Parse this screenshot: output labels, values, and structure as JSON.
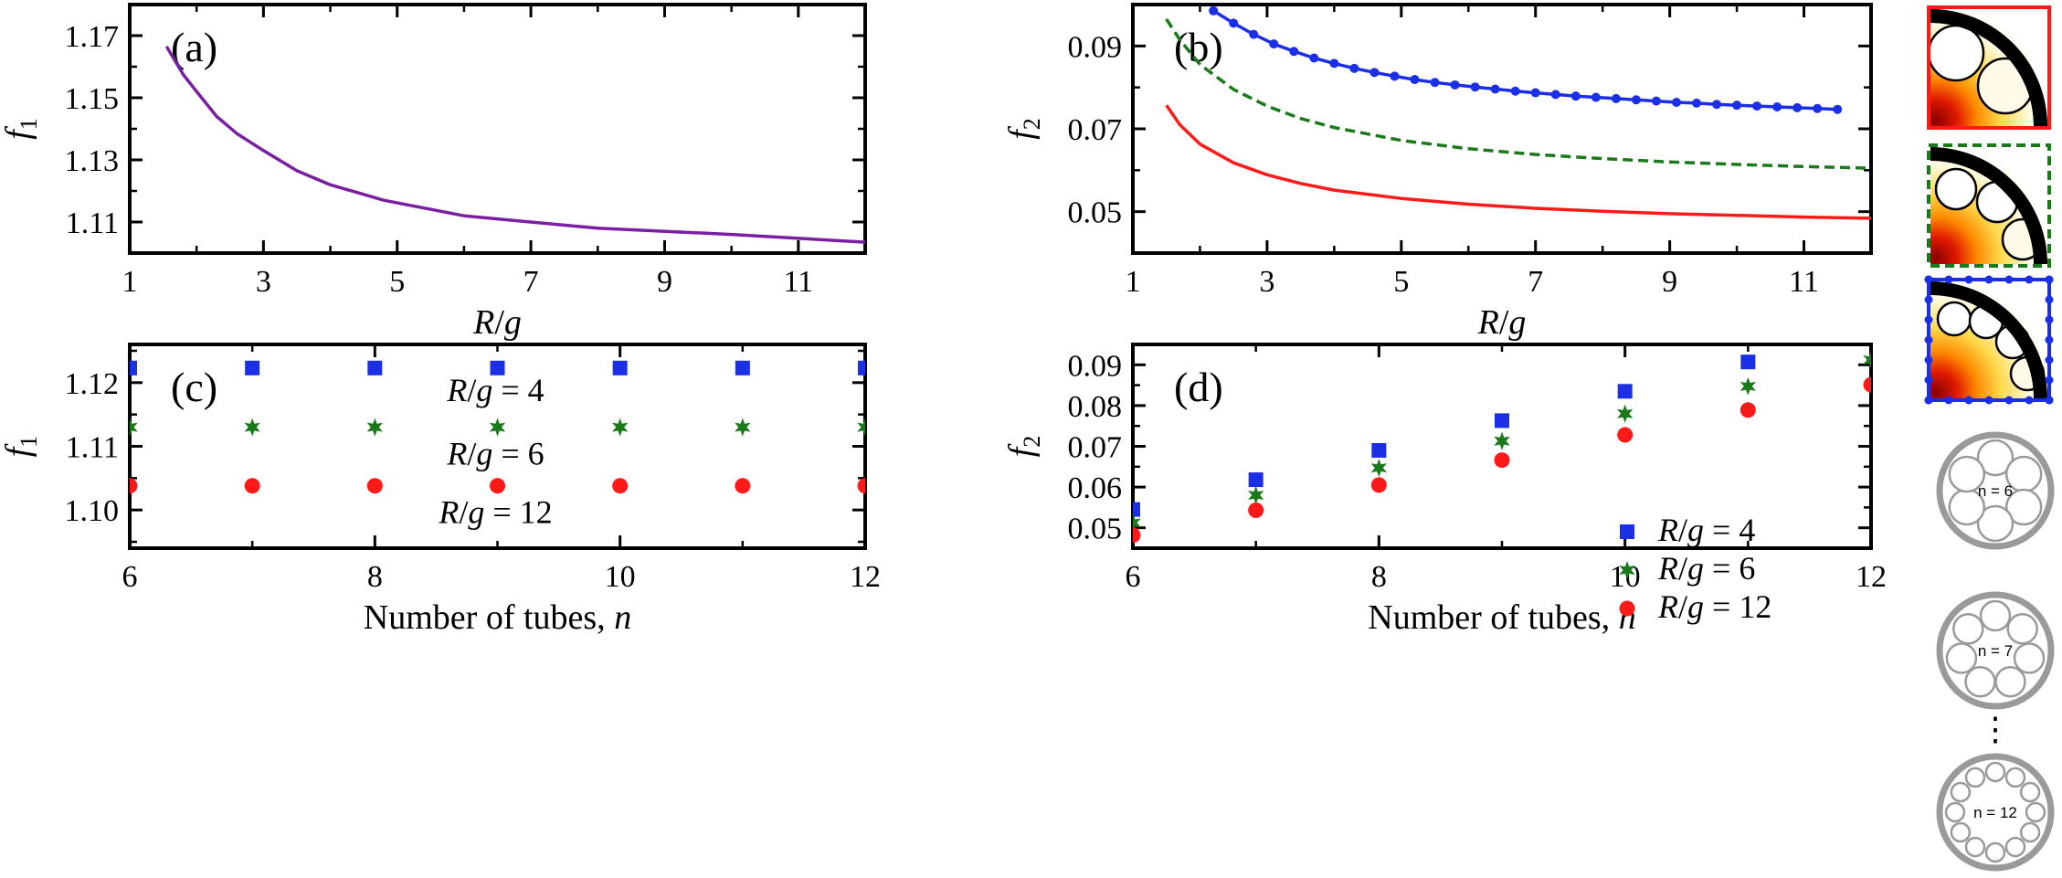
{
  "colors": {
    "purple": "#7a1fa2",
    "red": "#ff1a1a",
    "green": "#1a7a1a",
    "blue": "#1a2fe6",
    "grey": "#9a9a9a"
  },
  "chart_data": [
    {
      "id": "a",
      "type": "line",
      "panel_label": "(a)",
      "xlabel_var": "R",
      "xlabel_sep": "/",
      "xlabel_var2": "g",
      "ylabel": "f",
      "ylabel_sub": "1",
      "xlim": [
        1,
        12
      ],
      "ylim": [
        1.1,
        1.18
      ],
      "xticks": [
        1,
        3,
        5,
        7,
        9,
        11
      ],
      "yticks": [
        1.11,
        1.13,
        1.15,
        1.17
      ],
      "xtick_labels": [
        "1",
        "3",
        "5",
        "7",
        "9",
        "11"
      ],
      "ytick_labels": [
        "1.11",
        "1.13",
        "1.15",
        "1.17"
      ],
      "series": [
        {
          "name": "f1",
          "color": "#7a1fa2",
          "style": "solid",
          "x": [
            1.55,
            1.8,
            2.0,
            2.3,
            2.6,
            3.0,
            3.5,
            4.0,
            4.8,
            6.0,
            8.0,
            10.0,
            12.0
          ],
          "y": [
            1.1665,
            1.1575,
            1.152,
            1.144,
            1.1385,
            1.133,
            1.1265,
            1.122,
            1.117,
            1.112,
            1.108,
            1.106,
            1.1035
          ]
        }
      ]
    },
    {
      "id": "b",
      "type": "line",
      "panel_label": "(b)",
      "xlabel_var": "R",
      "xlabel_sep": "/",
      "xlabel_var2": "g",
      "ylabel": "f",
      "ylabel_sub": "2",
      "xlim": [
        1,
        12
      ],
      "ylim": [
        0.04,
        0.1
      ],
      "xticks": [
        1,
        3,
        5,
        7,
        9,
        11
      ],
      "yticks": [
        0.05,
        0.07,
        0.09
      ],
      "xtick_labels": [
        "1",
        "3",
        "5",
        "7",
        "9",
        "11"
      ],
      "ytick_labels": [
        "0.05",
        "0.07",
        "0.09"
      ],
      "series": [
        {
          "name": "red",
          "color": "#ff1a1a",
          "style": "solid",
          "x": [
            1.5,
            1.7,
            2.0,
            2.5,
            3.0,
            3.5,
            4.0,
            5.0,
            6.0,
            7.0,
            8.0,
            9.0,
            10.0,
            11.0,
            12.0
          ],
          "y": [
            0.0757,
            0.071,
            0.0663,
            0.0618,
            0.0589,
            0.0568,
            0.0552,
            0.0532,
            0.0518,
            0.0508,
            0.0501,
            0.0495,
            0.0491,
            0.0487,
            0.0484
          ]
        },
        {
          "name": "green-dashed",
          "color": "#1a7a1a",
          "style": "dashed",
          "x": [
            1.5,
            1.7,
            2.0,
            2.5,
            3.0,
            3.5,
            4.0,
            5.0,
            6.0,
            7.0,
            8.0,
            9.0,
            10.0,
            11.0,
            12.0
          ],
          "y": [
            0.0965,
            0.0915,
            0.0855,
            0.0795,
            0.0755,
            0.0725,
            0.0703,
            0.0672,
            0.0652,
            0.0638,
            0.0628,
            0.062,
            0.0614,
            0.0609,
            0.0605
          ]
        },
        {
          "name": "blue-markers",
          "color": "#1a2fe6",
          "style": "solid-markers",
          "x": [
            2.2,
            2.5,
            2.8,
            3.1,
            3.4,
            3.7,
            4.0,
            4.3,
            4.6,
            4.9,
            5.2,
            5.5,
            5.8,
            6.1,
            6.4,
            6.7,
            7.0,
            7.3,
            7.6,
            7.9,
            8.2,
            8.5,
            8.8,
            9.1,
            9.4,
            9.7,
            10.0,
            10.3,
            10.6,
            10.9,
            11.2,
            11.5
          ],
          "y": [
            0.0985,
            0.0955,
            0.0928,
            0.0905,
            0.0887,
            0.0871,
            0.0858,
            0.0846,
            0.0836,
            0.0827,
            0.0819,
            0.0812,
            0.0806,
            0.0801,
            0.0796,
            0.0791,
            0.0787,
            0.0783,
            0.0779,
            0.0776,
            0.0773,
            0.077,
            0.0767,
            0.0764,
            0.0762,
            0.0759,
            0.0757,
            0.0755,
            0.0753,
            0.0751,
            0.0749,
            0.0747
          ]
        }
      ]
    },
    {
      "id": "c",
      "type": "scatter",
      "panel_label": "(c)",
      "xlabel_text": "Number of tubes, ",
      "xlabel_var": "n",
      "ylabel": "f",
      "ylabel_sub": "1",
      "xlim": [
        6,
        12
      ],
      "ylim": [
        1.094,
        1.126
      ],
      "xticks": [
        6,
        8,
        10,
        12
      ],
      "yticks": [
        1.1,
        1.11,
        1.12
      ],
      "xtick_labels": [
        "6",
        "8",
        "10",
        "12"
      ],
      "ytick_labels": [
        "1.10",
        "1.11",
        "1.12"
      ],
      "annotations": [
        {
          "var": "R",
          "sep": "/",
          "var2": "g",
          "rest": " = 4"
        },
        {
          "var": "R",
          "sep": "/",
          "var2": "g",
          "rest": " = 6"
        },
        {
          "var": "R",
          "sep": "/",
          "var2": "g",
          "rest": " = 12"
        }
      ],
      "series": [
        {
          "name": "R/g = 4",
          "color": "#1a2fe6",
          "marker": "square",
          "x": [
            6,
            7,
            8,
            9,
            10,
            11,
            12
          ],
          "y": [
            1.1223,
            1.1223,
            1.1223,
            1.1223,
            1.1223,
            1.1223,
            1.1223
          ]
        },
        {
          "name": "R/g = 6",
          "color": "#1a7a1a",
          "marker": "star",
          "x": [
            6,
            7,
            8,
            9,
            10,
            11,
            12
          ],
          "y": [
            1.113,
            1.113,
            1.113,
            1.113,
            1.113,
            1.113,
            1.113
          ]
        },
        {
          "name": "R/g = 12",
          "color": "#ff1a1a",
          "marker": "circle",
          "x": [
            6,
            7,
            8,
            9,
            10,
            11,
            12
          ],
          "y": [
            1.1038,
            1.1038,
            1.1038,
            1.1038,
            1.1038,
            1.1038,
            1.1038
          ]
        }
      ]
    },
    {
      "id": "d",
      "type": "scatter",
      "panel_label": "(d)",
      "xlabel_text": "Number of tubes, ",
      "xlabel_var": "n",
      "ylabel": "f",
      "ylabel_sub": "2",
      "xlim": [
        6,
        12
      ],
      "ylim": [
        0.045,
        0.095
      ],
      "xticks": [
        6,
        8,
        10,
        12
      ],
      "yticks": [
        0.05,
        0.06,
        0.07,
        0.08,
        0.09
      ],
      "xtick_labels": [
        "6",
        "8",
        "10",
        "12"
      ],
      "ytick_labels": [
        "0.05",
        "0.06",
        "0.07",
        "0.08",
        "0.09"
      ],
      "legend": [
        {
          "var": "R",
          "sep": "/",
          "var2": "g",
          "rest": " = 4"
        },
        {
          "var": "R",
          "sep": "/",
          "var2": "g",
          "rest": " = 6"
        },
        {
          "var": "R",
          "sep": "/",
          "var2": "g",
          "rest": " = 12"
        }
      ],
      "series": [
        {
          "name": "R/g = 4",
          "color": "#1a2fe6",
          "marker": "square",
          "x": [
            6,
            7,
            8,
            9,
            10,
            11
          ],
          "y": [
            0.0545,
            0.0618,
            0.069,
            0.0763,
            0.0835,
            0.0907
          ]
        },
        {
          "name": "R/g = 6",
          "color": "#1a7a1a",
          "marker": "star",
          "x": [
            6,
            7,
            8,
            9,
            10,
            11,
            12
          ],
          "y": [
            0.0512,
            0.058,
            0.0647,
            0.0713,
            0.078,
            0.0847,
            0.0912
          ]
        },
        {
          "name": "R/g = 12",
          "color": "#ff1a1a",
          "marker": "circle",
          "x": [
            6,
            7,
            8,
            9,
            10,
            11,
            12
          ],
          "y": [
            0.0482,
            0.0543,
            0.0605,
            0.0666,
            0.0728,
            0.0789,
            0.0851
          ]
        }
      ]
    }
  ],
  "insets": {
    "tube_labels": [
      "n = 6",
      "n = 7",
      "n = 12"
    ],
    "ellipsis": "⋮"
  }
}
